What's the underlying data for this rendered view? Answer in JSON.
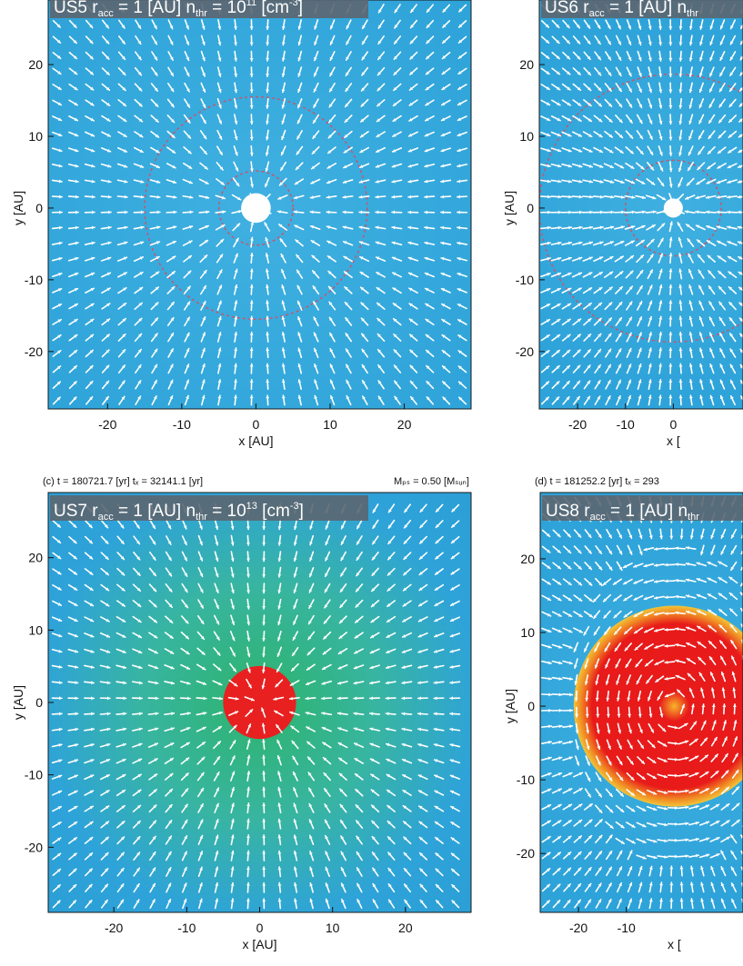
{
  "chart_data": [
    {
      "type": "heatmap",
      "label": "US5",
      "title": "US5  r_acc = 1 [AU]  n_thr = 10^11 [cm^-3]",
      "title_parts": {
        "name": "US5",
        "r": "r",
        "r_sub": "acc",
        "r_val": " = 1 [AU]  ",
        "n": "n",
        "n_sub": "thr",
        "n_val": " = 10",
        "n_exp": "11",
        "n_unit": " [cm",
        "n_unit_exp": "-3",
        "n_close": "]"
      },
      "header_left": "",
      "header_right": "",
      "xlabel": "x [AU]",
      "ylabel": "y [AU]",
      "xlim": [
        -28,
        29
      ],
      "ylim": [
        -28,
        29
      ],
      "xticks": [
        -20,
        -10,
        0,
        10,
        20
      ],
      "yticks": [
        -20,
        -10,
        0,
        10,
        20
      ],
      "background": "#2ea3d9",
      "core": {
        "radius_au": 2,
        "color": "#ffffff"
      },
      "contours_au": [
        5,
        15
      ],
      "flow": "radial",
      "grid": false
    },
    {
      "type": "heatmap",
      "label": "US6",
      "title": "US6  r_acc = 1 [AU]  n_thr",
      "title_parts": {
        "name": "US6",
        "r": "r",
        "r_sub": "acc",
        "r_val": " = 1 [AU]  ",
        "n": "n",
        "n_sub": "thr",
        "n_val": "",
        "n_exp": "",
        "n_unit": "",
        "n_unit_exp": "",
        "n_close": ""
      },
      "header_left": "",
      "header_right": "",
      "xlabel": "x [",
      "ylabel": "y [AU]",
      "xlim": [
        -28,
        29
      ],
      "ylim": [
        -28,
        29
      ],
      "xticks": [
        -20,
        -10,
        0
      ],
      "yticks": [
        -20,
        -10,
        0,
        10,
        20
      ],
      "background": "#2ea3d9",
      "core": {
        "radius_au": 2,
        "color": "#ffffff"
      },
      "contours_au": [
        10,
        28
      ],
      "flow": "radial",
      "grid": false
    },
    {
      "type": "heatmap",
      "label": "US7",
      "title": "US7  r_acc = 1 [AU]  n_thr = 10^13 [cm^-3]",
      "title_parts": {
        "name": "US7",
        "r": "r",
        "r_sub": "acc",
        "r_val": " = 1 [AU]  ",
        "n": "n",
        "n_sub": "thr",
        "n_val": " = 10",
        "n_exp": "13",
        "n_unit": " [cm",
        "n_unit_exp": "-3",
        "n_close": "]"
      },
      "header_left": "(c) t = 180721.7 [yr]   tₓ = 32141.1 [yr]",
      "header_right": "Mₚₛ = 0.50 [Mₛᵤₙ]",
      "xlabel": "x [AU]",
      "ylabel": "y [AU]",
      "xlim": [
        -29,
        29
      ],
      "ylim": [
        -29,
        29
      ],
      "xticks": [
        -20,
        -10,
        0,
        10,
        20
      ],
      "yticks": [
        -20,
        -10,
        0,
        10,
        20
      ],
      "background": "#2ea3d9",
      "core": {
        "radius_au": 5,
        "color": "#e82020"
      },
      "halo": {
        "radius_au": 16,
        "color": "#2db36a"
      },
      "contours_au": [],
      "flow": "radial",
      "grid": false
    },
    {
      "type": "heatmap",
      "label": "US8",
      "title": "US8  r_acc = 1 [AU]  n_thr",
      "title_parts": {
        "name": "US8",
        "r": "r",
        "r_sub": "acc",
        "r_val": " = 1 [AU]  ",
        "n": "n",
        "n_sub": "thr",
        "n_val": "",
        "n_exp": "",
        "n_unit": "",
        "n_unit_exp": "",
        "n_close": ""
      },
      "header_left": "(d) t = 181252.2 [yr]   tₓ = 293",
      "header_right": "",
      "xlabel": "x [",
      "ylabel": "y [AU]",
      "xlim": [
        -28,
        29
      ],
      "ylim": [
        -28,
        29
      ],
      "xticks": [
        -20,
        -10
      ],
      "yticks": [
        -20,
        -10,
        0,
        10,
        20
      ],
      "background": "#2ea3d9",
      "core": {
        "radius_au": 21,
        "color": "#e81a1a"
      },
      "rim_color": "#f08a24",
      "contours_au": [],
      "flow": "rotation",
      "grid": false
    }
  ]
}
